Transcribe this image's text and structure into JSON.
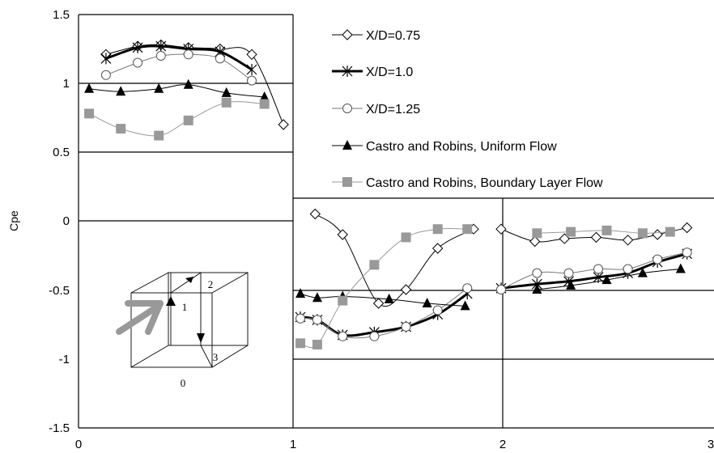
{
  "chart_data": {
    "type": "line",
    "title": "",
    "xlabel": "",
    "ylabel": "Cpe",
    "xlim": [
      0,
      3
    ],
    "ylim": [
      -1.5,
      1.5
    ],
    "x_ticks": [
      "0",
      "1",
      "2",
      "3"
    ],
    "y_ticks": [
      "1.5",
      "1",
      "0.5",
      "0",
      "-0.5",
      "-1",
      "-1.5"
    ],
    "legend_position": "top-right",
    "series": [
      {
        "name": "X/D=0.75",
        "color": "#000000",
        "marker": "diamond-open",
        "points": [
          [
            0.13,
            1.21
          ],
          [
            0.28,
            1.27
          ],
          [
            0.39,
            1.28
          ],
          [
            0.52,
            1.26
          ],
          [
            0.67,
            1.25
          ],
          [
            0.82,
            1.21
          ],
          [
            0.97,
            0.7
          ],
          [
            1.12,
            0.05
          ],
          [
            1.25,
            -0.1
          ],
          [
            1.42,
            -0.6
          ],
          [
            1.55,
            -0.5
          ],
          [
            1.7,
            -0.2
          ],
          [
            1.87,
            -0.06
          ],
          [
            2.0,
            -0.06
          ],
          [
            2.16,
            -0.15
          ],
          [
            2.3,
            -0.13
          ],
          [
            2.45,
            -0.12
          ],
          [
            2.6,
            -0.14
          ],
          [
            2.74,
            -0.1
          ],
          [
            2.88,
            -0.05
          ]
        ]
      },
      {
        "name": "X/D=1.0",
        "color": "#000000",
        "marker": "asterisk",
        "points": [
          [
            0.13,
            1.18
          ],
          [
            0.28,
            1.26
          ],
          [
            0.39,
            1.27
          ],
          [
            0.52,
            1.25
          ],
          [
            0.67,
            1.23
          ],
          [
            0.82,
            1.1
          ],
          [
            1.05,
            -0.7
          ],
          [
            1.13,
            -0.72
          ],
          [
            1.25,
            -0.83
          ],
          [
            1.4,
            -0.81
          ],
          [
            1.55,
            -0.77
          ],
          [
            1.7,
            -0.68
          ],
          [
            1.84,
            -0.53
          ],
          [
            2.0,
            -0.49
          ],
          [
            2.17,
            -0.46
          ],
          [
            2.32,
            -0.44
          ],
          [
            2.46,
            -0.41
          ],
          [
            2.6,
            -0.38
          ],
          [
            2.74,
            -0.3
          ],
          [
            2.88,
            -0.24
          ]
        ]
      },
      {
        "name": "X/D=1.25",
        "color": "#555555",
        "marker": "circle-open",
        "points": [
          [
            0.13,
            1.06
          ],
          [
            0.28,
            1.15
          ],
          [
            0.39,
            1.2
          ],
          [
            0.52,
            1.21
          ],
          [
            0.67,
            1.18
          ],
          [
            0.82,
            1.02
          ],
          [
            1.05,
            -0.71
          ],
          [
            1.13,
            -0.72
          ],
          [
            1.25,
            -0.84
          ],
          [
            1.4,
            -0.84
          ],
          [
            1.55,
            -0.77
          ],
          [
            1.7,
            -0.65
          ],
          [
            1.84,
            -0.49
          ],
          [
            2.0,
            -0.5
          ],
          [
            2.17,
            -0.38
          ],
          [
            2.32,
            -0.38
          ],
          [
            2.46,
            -0.35
          ],
          [
            2.6,
            -0.35
          ],
          [
            2.74,
            -0.28
          ],
          [
            2.88,
            -0.23
          ]
        ]
      },
      {
        "name": "Castro and Robins, Uniform Flow",
        "color": "#000000",
        "marker": "triangle",
        "points": [
          [
            0.05,
            0.96
          ],
          [
            0.2,
            0.94
          ],
          [
            0.38,
            0.96
          ],
          [
            0.52,
            0.99
          ],
          [
            0.7,
            0.93
          ],
          [
            0.88,
            0.9
          ],
          [
            1.05,
            -0.53
          ],
          [
            1.13,
            -0.56
          ],
          [
            1.25,
            -0.55
          ],
          [
            1.47,
            -0.57
          ],
          [
            1.65,
            -0.6
          ],
          [
            1.83,
            -0.62
          ],
          [
            2.17,
            -0.5
          ],
          [
            2.33,
            -0.47
          ],
          [
            2.5,
            -0.43
          ],
          [
            2.67,
            -0.38
          ],
          [
            2.85,
            -0.35
          ]
        ]
      },
      {
        "name": "Castro and Robins, Boundary Layer Flow",
        "color": "#999999",
        "marker": "square",
        "points": [
          [
            0.05,
            0.78
          ],
          [
            0.2,
            0.67
          ],
          [
            0.38,
            0.62
          ],
          [
            0.52,
            0.73
          ],
          [
            0.7,
            0.86
          ],
          [
            0.88,
            0.85
          ],
          [
            1.05,
            -0.89
          ],
          [
            1.13,
            -0.9
          ],
          [
            1.25,
            -0.58
          ],
          [
            1.4,
            -0.32
          ],
          [
            1.55,
            -0.12
          ],
          [
            1.7,
            -0.06
          ],
          [
            1.84,
            -0.06
          ],
          [
            2.17,
            -0.09
          ],
          [
            2.33,
            -0.08
          ],
          [
            2.5,
            -0.07
          ],
          [
            2.67,
            -0.09
          ],
          [
            2.8,
            -0.08
          ]
        ]
      }
    ],
    "inset_labels": [
      "0",
      "1",
      "2",
      "3"
    ]
  }
}
